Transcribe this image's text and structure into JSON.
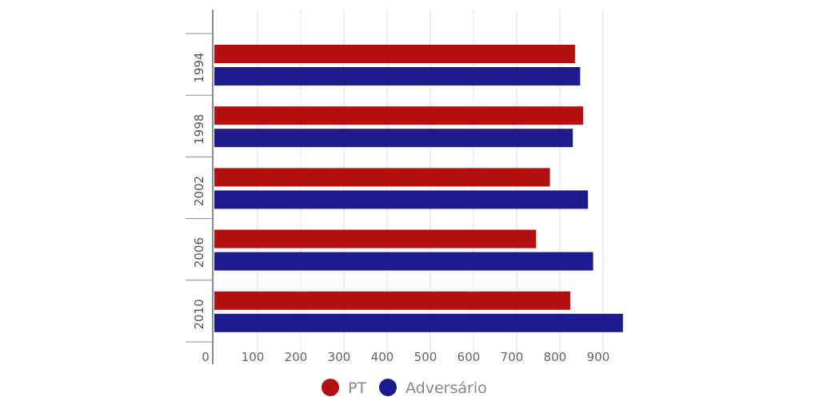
{
  "chart_data": {
    "type": "bar",
    "orientation": "horizontal",
    "categories": [
      "1994",
      "1998",
      "2002",
      "2006",
      "2010"
    ],
    "series": [
      {
        "name": "PT",
        "color": "#b31111",
        "values": [
          835,
          854,
          777,
          745,
          824
        ]
      },
      {
        "name": "Adversário",
        "color": "#1c1a8c",
        "values": [
          847,
          830,
          865,
          877,
          946
        ]
      }
    ],
    "x_ticks": [
      "0",
      "100",
      "200",
      "300",
      "400",
      "500",
      "600",
      "700",
      "800",
      "900"
    ],
    "xlim": [
      0,
      1000
    ],
    "grid": true,
    "legend_position": "bottom"
  }
}
